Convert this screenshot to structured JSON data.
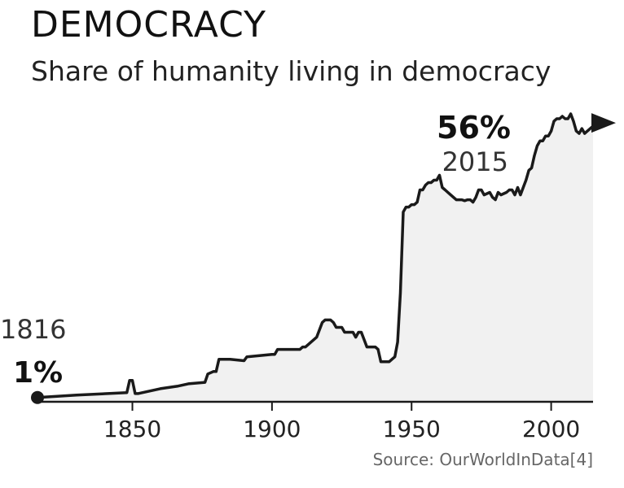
{
  "title": "DEMOCRACY",
  "subtitle": "Share of humanity living in democracy",
  "source": "Source: OurWorldInData[4]",
  "colors": {
    "line": "#1a1a1a",
    "fill": "#f1f1f1",
    "axis": "#1a1a1a",
    "text": "#222222"
  },
  "annotations": {
    "start": {
      "year": "1816",
      "value": "1%"
    },
    "end": {
      "year": "2015",
      "value": "56%"
    }
  },
  "chart_data": {
    "type": "area",
    "title": "DEMOCRACY",
    "subtitle": "Share of humanity living in democracy",
    "xlabel": "",
    "ylabel": "",
    "xlim": [
      1816,
      2015
    ],
    "ylim": [
      0,
      60
    ],
    "xticks": [
      1850,
      1900,
      1950,
      2000
    ],
    "grid": false,
    "legend": "none",
    "start_marker": "dot",
    "end_marker": "arrow",
    "series": [
      {
        "x": [
          1816,
          1830,
          1848,
          1849,
          1850,
          1851,
          1852,
          1860,
          1866,
          1870,
          1876,
          1877,
          1879,
          1880,
          1881,
          1885,
          1890,
          1891,
          1900,
          1901,
          1902,
          1910,
          1911,
          1912,
          1916,
          1918,
          1919,
          1920,
          1921,
          1922,
          1923,
          1925,
          1926,
          1929,
          1930,
          1931,
          1932,
          1933,
          1934,
          1937,
          1938,
          1939,
          1940,
          1942,
          1943,
          1944,
          1945,
          1946,
          1947,
          1948,
          1949,
          1950,
          1951,
          1952,
          1953,
          1954,
          1955,
          1956,
          1957,
          1958,
          1959,
          1960,
          1961,
          1962,
          1964,
          1966,
          1968,
          1969,
          1970,
          1971,
          1972,
          1973,
          1974,
          1975,
          1976,
          1978,
          1979,
          1980,
          1981,
          1982,
          1984,
          1985,
          1986,
          1987,
          1988,
          1989,
          1990,
          1991,
          1992,
          1993,
          1994,
          1995,
          1996,
          1997,
          1998,
          1999,
          2000,
          2001,
          2002,
          2003,
          2004,
          2005,
          2006,
          2007,
          2008,
          2009,
          2010,
          2011,
          2012,
          2015
        ],
        "y": [
          0.7,
          1.2,
          1.7,
          4.2,
          4.2,
          1.5,
          1.5,
          2.5,
          3.0,
          3.5,
          3.8,
          5.5,
          6.0,
          6.0,
          8.5,
          8.5,
          8.2,
          9.0,
          9.5,
          9.5,
          10.5,
          10.5,
          11.0,
          11.0,
          13.0,
          16.0,
          16.5,
          16.5,
          16.5,
          16.0,
          15.0,
          15.0,
          14.0,
          14.0,
          13.0,
          14.0,
          14.0,
          12.5,
          11.0,
          11.0,
          10.5,
          8.0,
          8.0,
          8.0,
          8.5,
          9.0,
          12.0,
          22.0,
          38.5,
          39.5,
          39.5,
          40.0,
          40.0,
          40.5,
          43.0,
          43.0,
          44.0,
          44.5,
          44.5,
          45.0,
          45.0,
          46.0,
          43.5,
          43.0,
          42.0,
          41.0,
          41.0,
          40.8,
          41.0,
          41.0,
          40.5,
          41.5,
          43.0,
          43.0,
          42.0,
          42.5,
          41.5,
          41.0,
          42.5,
          42.0,
          42.5,
          43.0,
          43.0,
          42.0,
          43.5,
          42.0,
          43.5,
          45.0,
          47.0,
          47.5,
          50.0,
          52.0,
          53.0,
          53.0,
          54.0,
          54.0,
          55.0,
          57.0,
          57.5,
          57.5,
          58.0,
          57.5,
          57.5,
          58.5,
          57.0,
          55.0,
          54.5,
          55.5,
          54.5,
          56.0
        ]
      }
    ]
  }
}
